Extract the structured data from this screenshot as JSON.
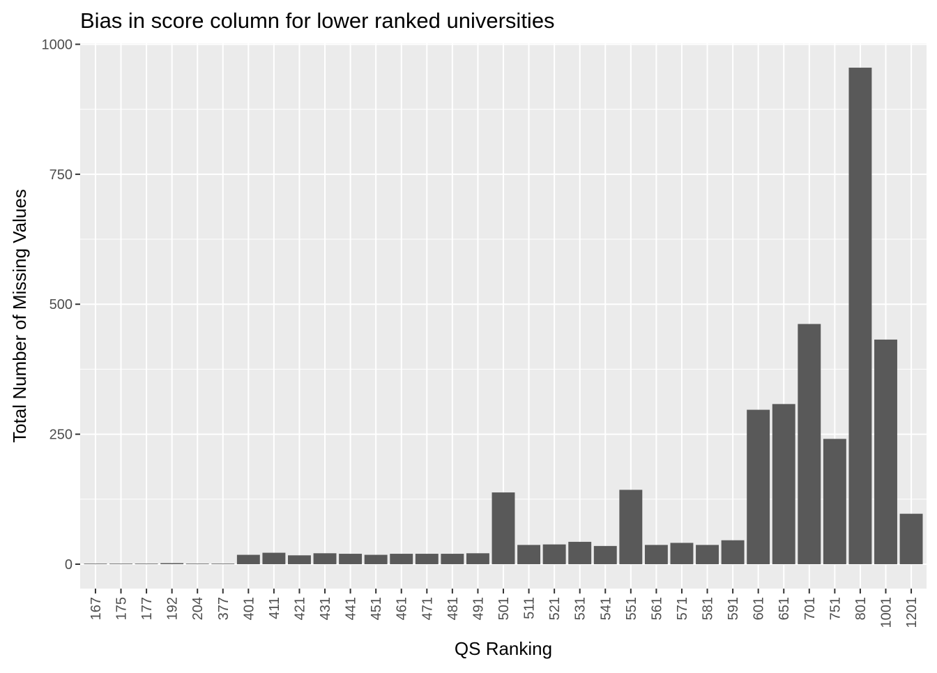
{
  "chart_data": {
    "type": "bar",
    "title": "Bias in score column for lower ranked universities",
    "xlabel": "QS Ranking",
    "ylabel": "Total Number of Missing Values",
    "categories": [
      "167",
      "175",
      "177",
      "192",
      "204",
      "377",
      "401",
      "411",
      "421",
      "431",
      "441",
      "451",
      "461",
      "471",
      "481",
      "491",
      "501",
      "511",
      "521",
      "531",
      "541",
      "551",
      "561",
      "571",
      "581",
      "591",
      "601",
      "651",
      "701",
      "751",
      "801",
      "1001",
      "1201"
    ],
    "values": [
      1,
      1,
      1,
      2,
      1,
      1,
      18,
      22,
      17,
      21,
      20,
      18,
      20,
      20,
      20,
      21,
      138,
      37,
      38,
      43,
      35,
      143,
      37,
      41,
      37,
      46,
      297,
      308,
      462,
      241,
      955,
      432,
      97
    ],
    "ylim": [
      -47,
      1002
    ],
    "yticks": [
      0,
      250,
      500,
      750,
      1000
    ],
    "yticks_minor": [
      125,
      375,
      625,
      875
    ],
    "ytick_labels": [
      "0",
      "250",
      "500",
      "750",
      "1000"
    ],
    "grid": true,
    "colors": {
      "panel": "#ebebeb",
      "grid": "#ffffff",
      "bar": "#595959",
      "tick_text": "#4d4d4d",
      "tick_mark": "#333333"
    }
  }
}
